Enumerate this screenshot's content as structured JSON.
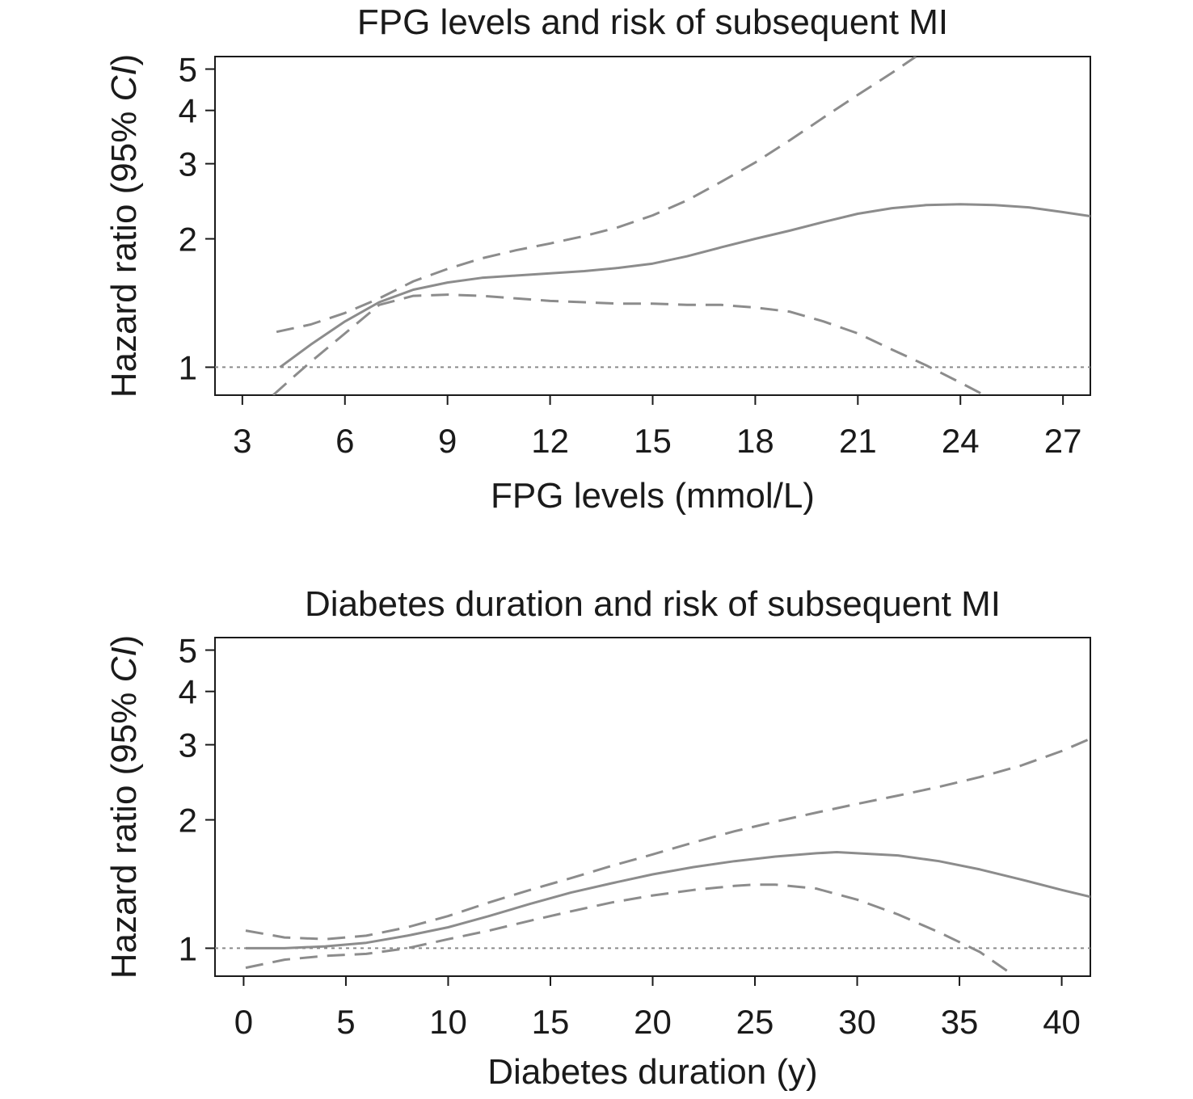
{
  "chart_data": [
    {
      "type": "line",
      "title": "FPG levels and risk of subsequent MI",
      "xlabel": "FPG levels (mmol/L)",
      "ylabel_main": "Hazard ratio (95% ",
      "ylabel_italic": "CI",
      "ylabel_end": ")",
      "y_scale": "log",
      "xlim": [
        2.2,
        27.8
      ],
      "ylim": [
        0.86,
        5.35
      ],
      "x_ticks": [
        3,
        6,
        9,
        12,
        15,
        18,
        21,
        24,
        27
      ],
      "x_tick_labels": [
        "3",
        "6",
        "9",
        "12",
        "15",
        "18",
        "21",
        "24",
        "27"
      ],
      "y_ticks": [
        1,
        2,
        3,
        4,
        5
      ],
      "y_tick_labels": [
        "1",
        "2",
        "3",
        "4",
        "5"
      ],
      "reference_line": 1,
      "series": [
        {
          "role": "estimate",
          "style": "solid",
          "x": [
            4.1,
            5,
            6,
            7,
            8,
            9,
            10,
            11,
            12,
            13,
            14,
            15,
            16,
            17,
            18,
            19,
            20,
            21,
            22,
            23,
            24,
            25,
            26,
            27,
            27.8
          ],
          "y": [
            1.0,
            1.13,
            1.28,
            1.42,
            1.52,
            1.58,
            1.62,
            1.64,
            1.66,
            1.68,
            1.71,
            1.75,
            1.82,
            1.91,
            2.0,
            2.09,
            2.19,
            2.29,
            2.36,
            2.4,
            2.41,
            2.4,
            2.37,
            2.31,
            2.26
          ]
        },
        {
          "role": "upper_ci",
          "style": "dashed",
          "x": [
            4.0,
            5,
            6,
            7,
            8,
            9,
            10,
            11,
            12,
            13,
            14,
            15,
            16,
            17,
            18,
            19,
            20,
            21,
            22,
            22.7
          ],
          "y": [
            1.21,
            1.26,
            1.34,
            1.45,
            1.59,
            1.7,
            1.8,
            1.88,
            1.95,
            2.03,
            2.13,
            2.27,
            2.46,
            2.72,
            3.02,
            3.4,
            3.85,
            4.35,
            4.9,
            5.35
          ]
        },
        {
          "role": "lower_ci",
          "style": "dashed",
          "x": [
            3.9,
            4.5,
            5,
            6,
            7,
            8,
            9,
            10,
            11,
            12,
            13,
            14,
            15,
            16,
            17,
            18,
            19,
            20,
            21,
            22,
            23,
            24,
            24.7
          ],
          "y": [
            0.86,
            0.95,
            1.03,
            1.2,
            1.4,
            1.47,
            1.48,
            1.47,
            1.45,
            1.43,
            1.42,
            1.41,
            1.41,
            1.4,
            1.4,
            1.38,
            1.35,
            1.28,
            1.2,
            1.1,
            1.01,
            0.92,
            0.86
          ]
        }
      ]
    },
    {
      "type": "line",
      "title": "Diabetes duration and risk of subsequent MI",
      "xlabel": "Diabetes duration (y)",
      "ylabel_main": "Hazard ratio (95% ",
      "ylabel_italic": "CI",
      "ylabel_end": ")",
      "y_scale": "log",
      "xlim": [
        -1.4,
        41.4
      ],
      "ylim": [
        0.86,
        5.35
      ],
      "x_ticks": [
        0,
        5,
        10,
        15,
        20,
        25,
        30,
        35,
        40
      ],
      "x_tick_labels": [
        "0",
        "5",
        "10",
        "15",
        "20",
        "25",
        "30",
        "35",
        "40"
      ],
      "y_ticks": [
        1,
        2,
        3,
        4,
        5
      ],
      "y_tick_labels": [
        "1",
        "2",
        "3",
        "4",
        "5"
      ],
      "reference_line": 1,
      "series": [
        {
          "role": "estimate",
          "style": "solid",
          "x": [
            0.1,
            2,
            4,
            6,
            8,
            10,
            12,
            14,
            16,
            18,
            20,
            22,
            24,
            26,
            28,
            29,
            30,
            32,
            34,
            36,
            38,
            40,
            41.4
          ],
          "y": [
            1.0,
            1.0,
            1.01,
            1.03,
            1.07,
            1.12,
            1.19,
            1.27,
            1.35,
            1.42,
            1.49,
            1.55,
            1.6,
            1.64,
            1.67,
            1.68,
            1.67,
            1.65,
            1.6,
            1.53,
            1.45,
            1.37,
            1.32
          ]
        },
        {
          "role": "upper_ci",
          "style": "dashed",
          "x": [
            0.1,
            2,
            4,
            6,
            8,
            10,
            12,
            14,
            16,
            18,
            20,
            22,
            24,
            26,
            28,
            30,
            32,
            34,
            36,
            38,
            40,
            41.4
          ],
          "y": [
            1.1,
            1.06,
            1.05,
            1.07,
            1.12,
            1.19,
            1.28,
            1.37,
            1.46,
            1.56,
            1.66,
            1.77,
            1.88,
            1.98,
            2.08,
            2.18,
            2.28,
            2.39,
            2.52,
            2.68,
            2.9,
            3.1
          ]
        },
        {
          "role": "lower_ci",
          "style": "dashed",
          "x": [
            0.1,
            2,
            4,
            6,
            8,
            10,
            12,
            14,
            16,
            18,
            20,
            22,
            24,
            25,
            26,
            28,
            30,
            32,
            34,
            36,
            37.7
          ],
          "y": [
            0.9,
            0.94,
            0.96,
            0.97,
            1.0,
            1.05,
            1.1,
            1.16,
            1.22,
            1.28,
            1.33,
            1.37,
            1.4,
            1.41,
            1.41,
            1.38,
            1.3,
            1.2,
            1.09,
            0.98,
            0.86
          ]
        }
      ]
    }
  ]
}
